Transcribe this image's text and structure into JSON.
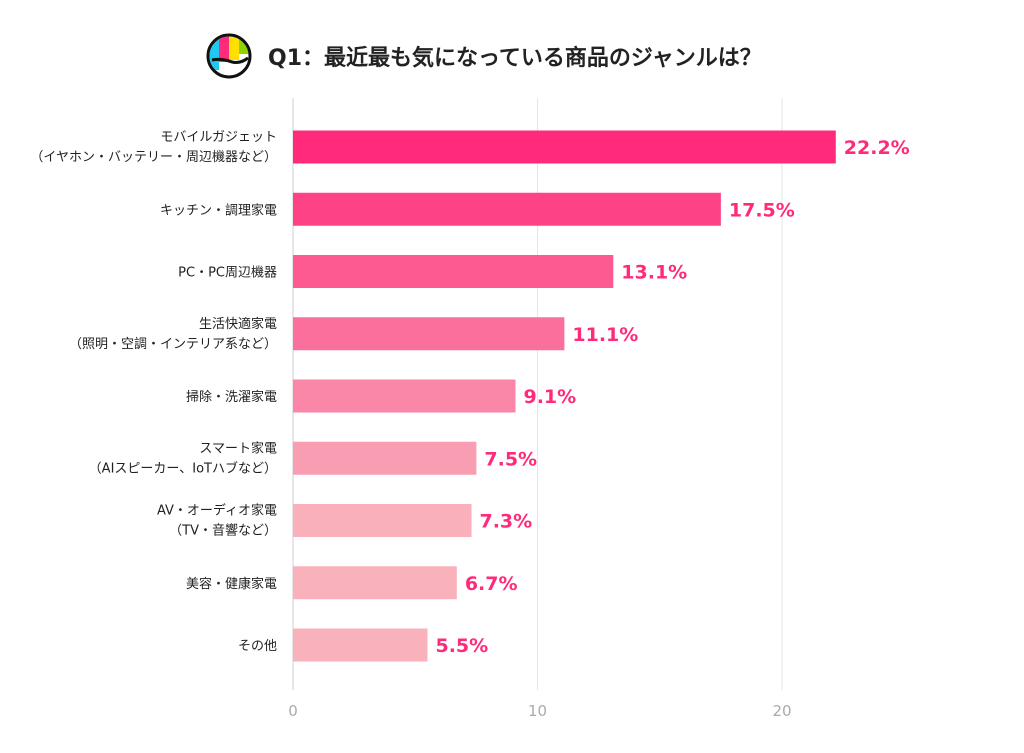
{
  "chart_data": {
    "type": "bar",
    "orientation": "horizontal",
    "title": "Q1：最近最も気になっている商品のジャンルは？",
    "categories": [
      [
        "モバイルガジェット",
        "（イヤホン・バッテリー・周辺機器など）"
      ],
      [
        "キッチン・調理家電"
      ],
      [
        "PC・PC周辺機器"
      ],
      [
        "生活快適家電",
        "（照明・空調・インテリア系など）"
      ],
      [
        "掃除・洗濯家電"
      ],
      [
        "スマート家電",
        "（AIスピーカー、IoTハブなど）"
      ],
      [
        "AV・オーディオ家電",
        "（TV・音響など）"
      ],
      [
        "美容・健康家電"
      ],
      [
        "その他"
      ]
    ],
    "values": [
      22.2,
      17.5,
      13.1,
      11.1,
      9.1,
      7.5,
      7.3,
      6.7,
      5.5
    ],
    "data_labels": [
      "22.2%",
      "17.5%",
      "13.1%",
      "11.1%",
      "9.1%",
      "7.5%",
      "7.3%",
      "6.7%",
      "5.5%"
    ],
    "colors": [
      "#ff2a7a",
      "#fd4386",
      "#fc5a91",
      "#fb6f9c",
      "#fa87a8",
      "#f99db2",
      "#f9b0ba",
      "#f9b2bb",
      "#f9b2bb"
    ],
    "xlim": [
      0,
      24
    ],
    "xticks": [
      0,
      10,
      20
    ],
    "xtick_labels": [
      "0",
      "10",
      "20"
    ],
    "grid": true,
    "label_color": "#ff2a7a",
    "xlabel": "",
    "ylabel": ""
  },
  "logo": {
    "colors": [
      "#1ec8f0",
      "#ff2a7a",
      "#ffe000",
      "#8fd400"
    ]
  }
}
